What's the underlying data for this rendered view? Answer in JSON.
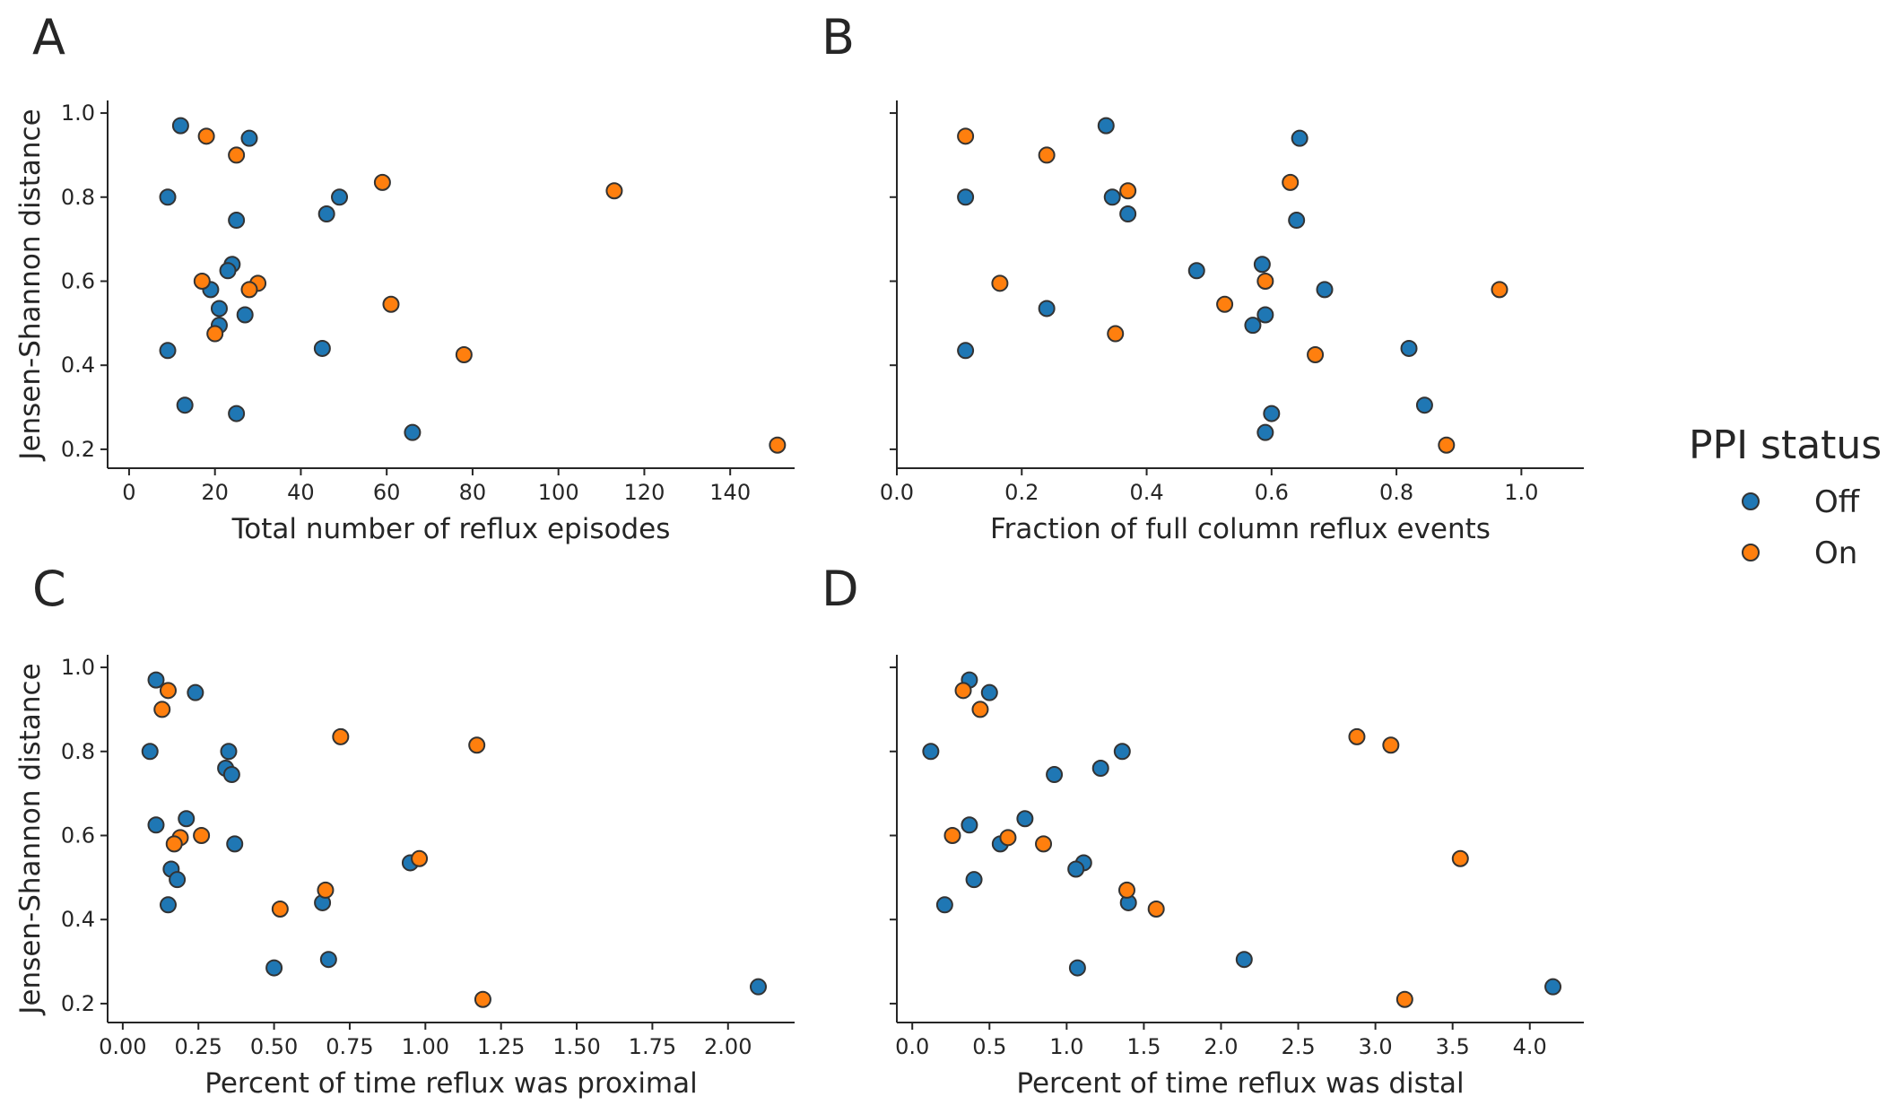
{
  "legend": {
    "title": "PPI status",
    "entries": [
      {
        "label": "Off",
        "color": "#1f77b4"
      },
      {
        "label": "On",
        "color": "#ff7f0e"
      }
    ]
  },
  "colors": {
    "Off": "#1f77b4",
    "On": "#ff7f0e",
    "edge": "#333333"
  },
  "chart_data": [
    {
      "type": "scatter",
      "panel": "A",
      "xlabel": "Total number of reflux episodes",
      "ylabel": "Jensen-Shannon distance",
      "xlim": [
        -5,
        155
      ],
      "ylim": [
        0.155,
        1.03
      ],
      "xticks": [
        0,
        20,
        40,
        60,
        80,
        100,
        120,
        140
      ],
      "xtick_labels": [
        "0",
        "20",
        "40",
        "60",
        "80",
        "100",
        "120",
        "140"
      ],
      "yticks": [
        0.2,
        0.4,
        0.6,
        0.8,
        1.0
      ],
      "ytick_labels": [
        "0.2",
        "0.4",
        "0.6",
        "0.8",
        "1.0"
      ],
      "series": [
        {
          "name": "Off",
          "points": [
            [
              12,
              0.97
            ],
            [
              28,
              0.94
            ],
            [
              9,
              0.8
            ],
            [
              49,
              0.8
            ],
            [
              46,
              0.76
            ],
            [
              25,
              0.745
            ],
            [
              24,
              0.64
            ],
            [
              23,
              0.625
            ],
            [
              19,
              0.58
            ],
            [
              21,
              0.535
            ],
            [
              27,
              0.52
            ],
            [
              21,
              0.495
            ],
            [
              9,
              0.435
            ],
            [
              45,
              0.44
            ],
            [
              13,
              0.305
            ],
            [
              25,
              0.285
            ],
            [
              66,
              0.24
            ]
          ]
        },
        {
          "name": "On",
          "points": [
            [
              18,
              0.945
            ],
            [
              25,
              0.9
            ],
            [
              59,
              0.835
            ],
            [
              113,
              0.815
            ],
            [
              17,
              0.6
            ],
            [
              30,
              0.595
            ],
            [
              28,
              0.58
            ],
            [
              61,
              0.545
            ],
            [
              20,
              0.475
            ],
            [
              78,
              0.425
            ],
            [
              151,
              0.21
            ]
          ]
        }
      ]
    },
    {
      "type": "scatter",
      "panel": "B",
      "xlabel": "Fraction of full column reflux events",
      "ylabel": "",
      "xlim": [
        0.0,
        1.1
      ],
      "ylim": [
        0.155,
        1.03
      ],
      "xticks": [
        0.0,
        0.2,
        0.4,
        0.6,
        0.8,
        1.0
      ],
      "xtick_labels": [
        "0.0",
        "0.2",
        "0.4",
        "0.6",
        "0.8",
        "1.0"
      ],
      "yticks": [
        0.2,
        0.4,
        0.6,
        0.8,
        1.0
      ],
      "ytick_labels": [],
      "series": [
        {
          "name": "Off",
          "points": [
            [
              0.335,
              0.97
            ],
            [
              0.645,
              0.94
            ],
            [
              0.11,
              0.8
            ],
            [
              0.345,
              0.8
            ],
            [
              0.37,
              0.76
            ],
            [
              0.64,
              0.745
            ],
            [
              0.585,
              0.64
            ],
            [
              0.48,
              0.625
            ],
            [
              0.685,
              0.58
            ],
            [
              0.24,
              0.535
            ],
            [
              0.59,
              0.52
            ],
            [
              0.57,
              0.495
            ],
            [
              0.11,
              0.435
            ],
            [
              0.82,
              0.44
            ],
            [
              0.845,
              0.305
            ],
            [
              0.6,
              0.285
            ],
            [
              0.59,
              0.24
            ]
          ]
        },
        {
          "name": "On",
          "points": [
            [
              0.11,
              0.945
            ],
            [
              0.24,
              0.9
            ],
            [
              0.63,
              0.835
            ],
            [
              0.37,
              0.815
            ],
            [
              0.165,
              0.595
            ],
            [
              0.59,
              0.6
            ],
            [
              0.965,
              0.58
            ],
            [
              0.525,
              0.545
            ],
            [
              0.35,
              0.475
            ],
            [
              0.67,
              0.425
            ],
            [
              0.88,
              0.21
            ]
          ]
        }
      ]
    },
    {
      "type": "scatter",
      "panel": "C",
      "xlabel": "Percent of time reflux was proximal",
      "ylabel": "Jensen-Shannon distance",
      "xlim": [
        -0.05,
        2.22
      ],
      "ylim": [
        0.155,
        1.03
      ],
      "xticks": [
        0.0,
        0.25,
        0.5,
        0.75,
        1.0,
        1.25,
        1.5,
        1.75,
        2.0
      ],
      "xtick_labels": [
        "0.00",
        "0.25",
        "0.50",
        "0.75",
        "1.00",
        "1.25",
        "1.50",
        "1.75",
        "2.00"
      ],
      "yticks": [
        0.2,
        0.4,
        0.6,
        0.8,
        1.0
      ],
      "ytick_labels": [
        "0.2",
        "0.4",
        "0.6",
        "0.8",
        "1.0"
      ],
      "series": [
        {
          "name": "Off",
          "points": [
            [
              0.11,
              0.97
            ],
            [
              0.24,
              0.94
            ],
            [
              0.09,
              0.8
            ],
            [
              0.35,
              0.8
            ],
            [
              0.34,
              0.76
            ],
            [
              0.36,
              0.745
            ],
            [
              0.21,
              0.64
            ],
            [
              0.11,
              0.625
            ],
            [
              0.37,
              0.58
            ],
            [
              0.16,
              0.52
            ],
            [
              0.18,
              0.495
            ],
            [
              0.15,
              0.435
            ],
            [
              0.66,
              0.44
            ],
            [
              0.95,
              0.535
            ],
            [
              0.68,
              0.305
            ],
            [
              0.5,
              0.285
            ],
            [
              2.1,
              0.24
            ]
          ]
        },
        {
          "name": "On",
          "points": [
            [
              0.15,
              0.945
            ],
            [
              0.13,
              0.9
            ],
            [
              0.72,
              0.835
            ],
            [
              1.17,
              0.815
            ],
            [
              0.19,
              0.595
            ],
            [
              0.26,
              0.6
            ],
            [
              0.17,
              0.58
            ],
            [
              0.98,
              0.545
            ],
            [
              0.67,
              0.47
            ],
            [
              0.52,
              0.425
            ],
            [
              1.19,
              0.21
            ]
          ]
        }
      ]
    },
    {
      "type": "scatter",
      "panel": "D",
      "xlabel": "Percent of time reflux was distal",
      "ylabel": "",
      "xlim": [
        -0.1,
        4.35
      ],
      "ylim": [
        0.155,
        1.03
      ],
      "xticks": [
        0.0,
        0.5,
        1.0,
        1.5,
        2.0,
        2.5,
        3.0,
        3.5,
        4.0
      ],
      "xtick_labels": [
        "0.0",
        "0.5",
        "1.0",
        "1.5",
        "2.0",
        "2.5",
        "3.0",
        "3.5",
        "4.0"
      ],
      "yticks": [
        0.2,
        0.4,
        0.6,
        0.8,
        1.0
      ],
      "ytick_labels": [],
      "series": [
        {
          "name": "Off",
          "points": [
            [
              0.37,
              0.97
            ],
            [
              0.5,
              0.94
            ],
            [
              0.12,
              0.8
            ],
            [
              1.36,
              0.8
            ],
            [
              1.22,
              0.76
            ],
            [
              0.92,
              0.745
            ],
            [
              0.73,
              0.64
            ],
            [
              0.37,
              0.625
            ],
            [
              0.57,
              0.58
            ],
            [
              1.11,
              0.535
            ],
            [
              1.06,
              0.52
            ],
            [
              0.4,
              0.495
            ],
            [
              0.21,
              0.435
            ],
            [
              1.4,
              0.44
            ],
            [
              2.15,
              0.305
            ],
            [
              1.07,
              0.285
            ],
            [
              4.15,
              0.24
            ]
          ]
        },
        {
          "name": "On",
          "points": [
            [
              0.33,
              0.945
            ],
            [
              0.44,
              0.9
            ],
            [
              2.88,
              0.835
            ],
            [
              3.1,
              0.815
            ],
            [
              0.26,
              0.6
            ],
            [
              0.62,
              0.595
            ],
            [
              0.85,
              0.58
            ],
            [
              3.55,
              0.545
            ],
            [
              1.39,
              0.47
            ],
            [
              1.58,
              0.425
            ],
            [
              3.19,
              0.21
            ]
          ]
        }
      ]
    }
  ]
}
